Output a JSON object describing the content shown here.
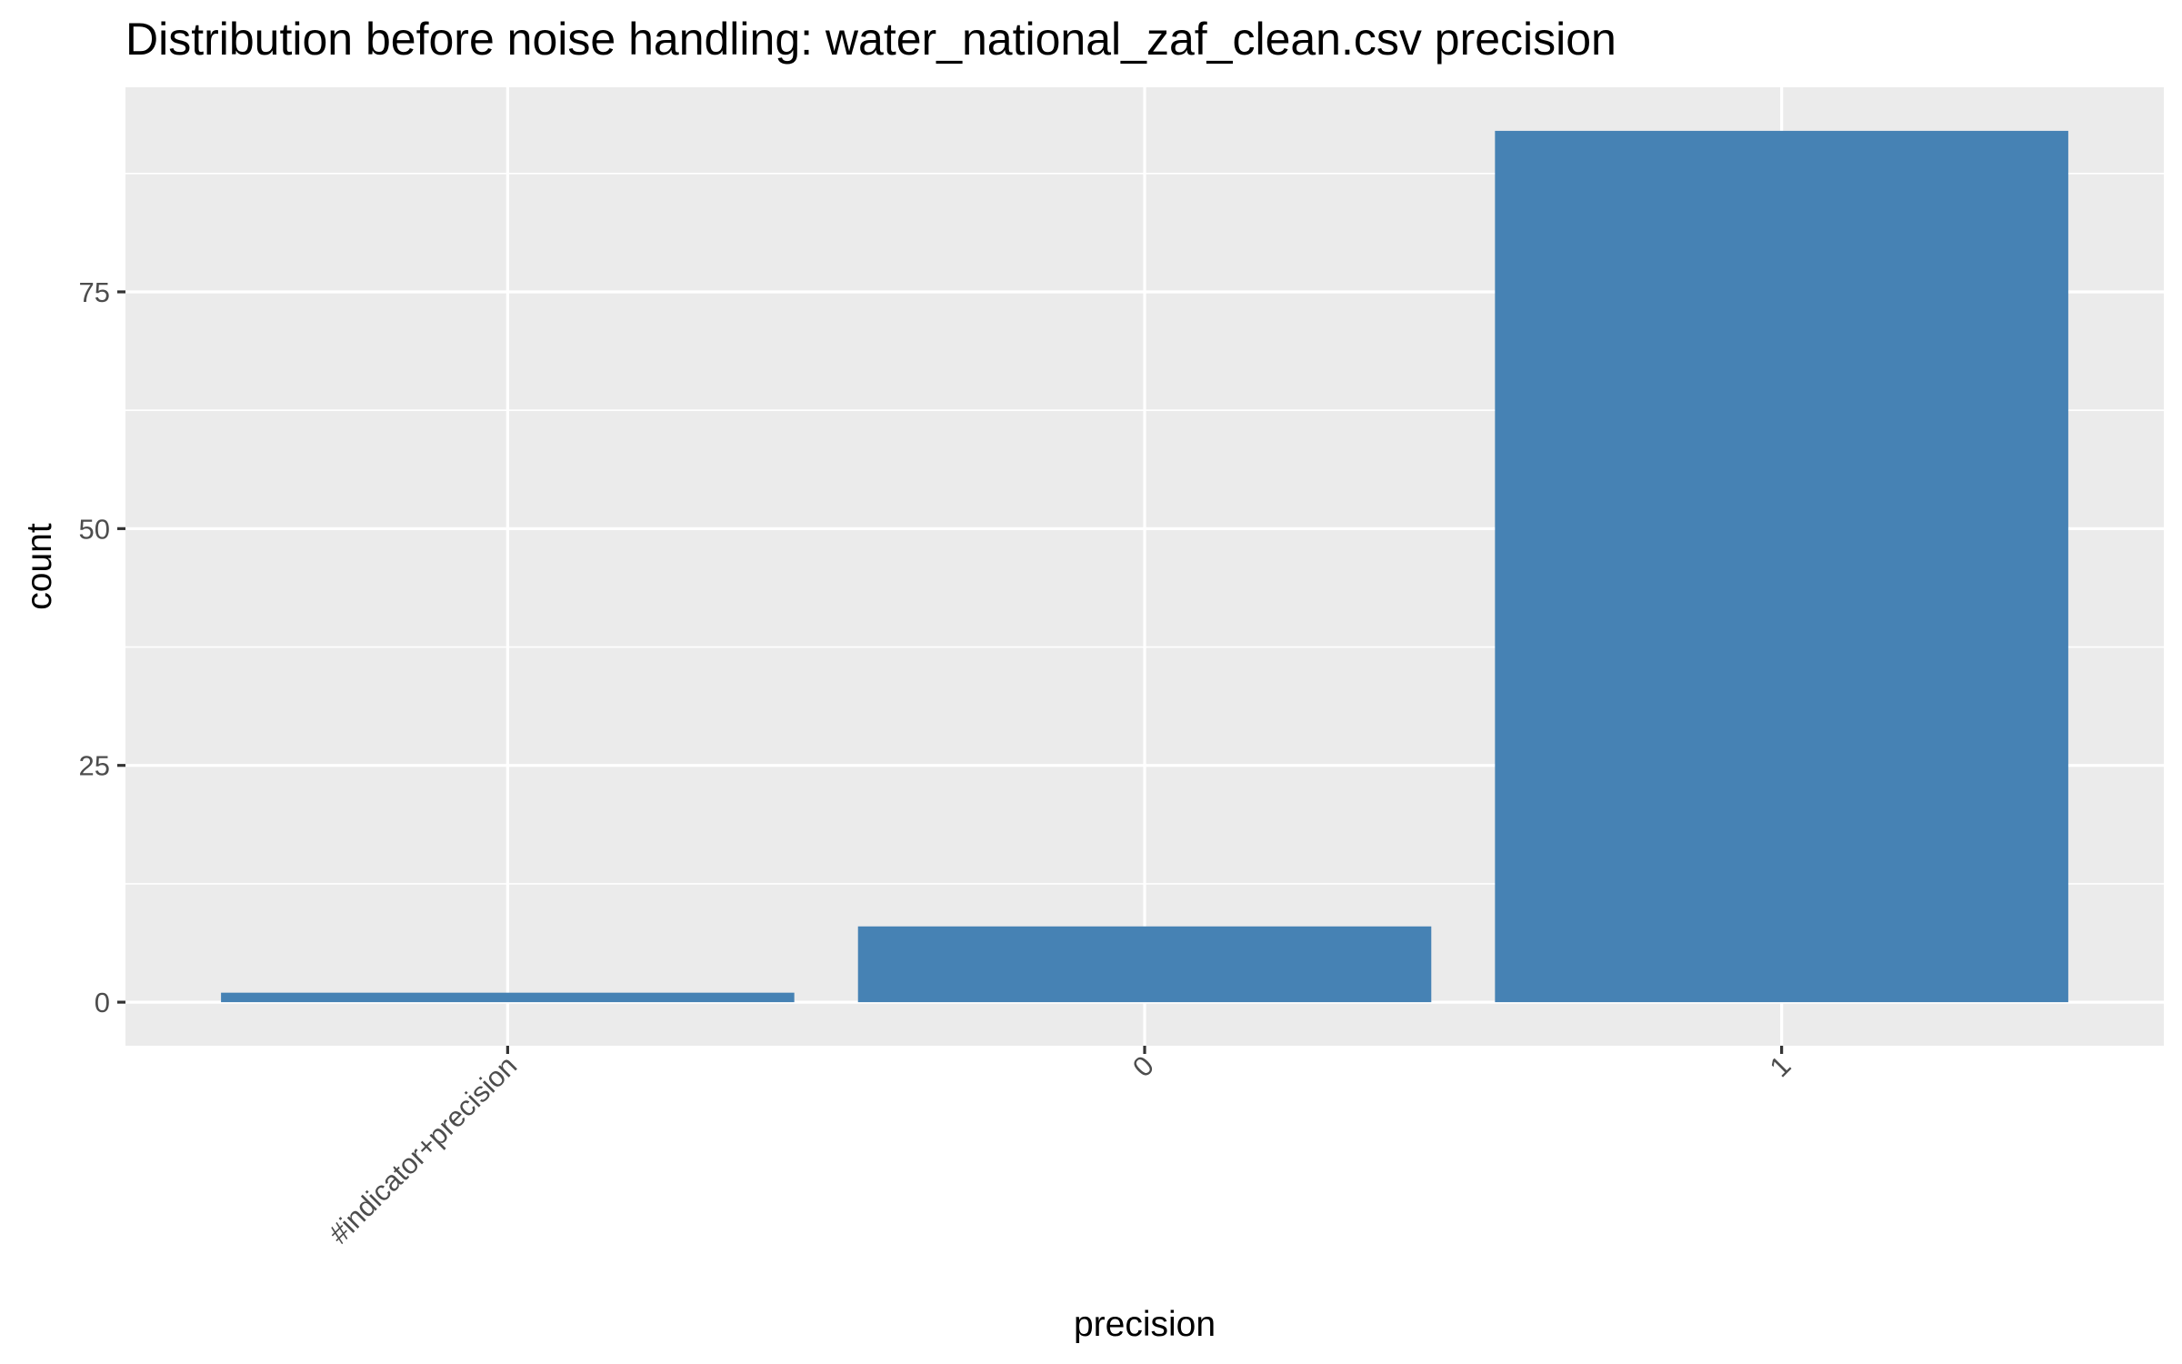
{
  "chart_data": {
    "type": "bar",
    "title": "Distribution before noise handling: water_national_zaf_clean.csv precision",
    "xlabel": "precision",
    "ylabel": "count",
    "categories": [
      "#indicator+precision",
      "0",
      "1"
    ],
    "values": [
      1,
      8,
      92
    ],
    "ylim": [
      -4.6,
      96.6
    ],
    "yticks": [
      0,
      25,
      50,
      75
    ],
    "ytick_labels": [
      "0",
      "25",
      "50",
      "75"
    ],
    "grid": true,
    "legend": "none",
    "colors": {
      "bar": "#4682b4",
      "panel": "#ebebeb",
      "grid": "#ffffff",
      "tick_text": "#4d4d4d",
      "tick_mark": "#333333"
    }
  }
}
